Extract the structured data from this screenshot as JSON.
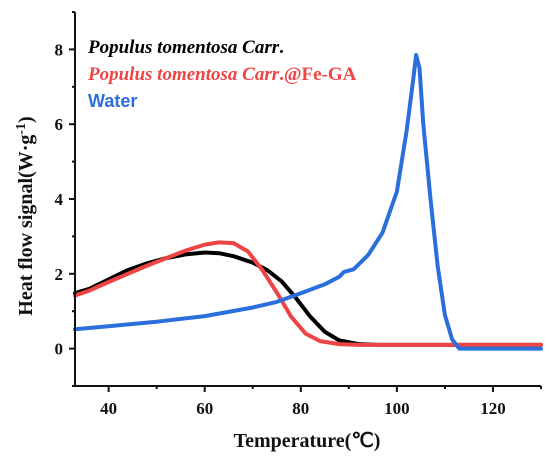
{
  "chart_data": {
    "type": "line",
    "title": "",
    "xlabel": "Temperature(℃)",
    "ylabel_main": "Heat flow signal(W·g",
    "ylabel_sup": "-1",
    "ylabel_close": ")",
    "xlim": [
      33,
      130
    ],
    "ylim": [
      -1,
      9
    ],
    "xticks": [
      40,
      60,
      80,
      100,
      120
    ],
    "yticks": [
      0,
      2,
      4,
      6,
      8
    ],
    "grid": false,
    "legend_placement": "top-left",
    "series": [
      {
        "name_italic": "Populus tomentosa Carr",
        "name_suffix": ".",
        "color": "#000000",
        "points": [
          [
            33,
            1.48
          ],
          [
            36,
            1.6
          ],
          [
            40,
            1.85
          ],
          [
            44,
            2.1
          ],
          [
            48,
            2.28
          ],
          [
            52,
            2.42
          ],
          [
            56,
            2.52
          ],
          [
            60,
            2.57
          ],
          [
            63,
            2.55
          ],
          [
            66,
            2.47
          ],
          [
            70,
            2.3
          ],
          [
            73,
            2.1
          ],
          [
            76,
            1.8
          ],
          [
            79,
            1.35
          ],
          [
            82,
            0.85
          ],
          [
            85,
            0.45
          ],
          [
            88,
            0.22
          ],
          [
            92,
            0.12
          ],
          [
            96,
            0.1
          ],
          [
            100,
            0.1
          ],
          [
            110,
            0.1
          ],
          [
            120,
            0.1
          ],
          [
            130,
            0.1
          ]
        ]
      },
      {
        "name_italic": "Populus tomentosa Carr",
        "name_suffix": ".@Fe-GA",
        "color": "#ef4444",
        "points": [
          [
            33,
            1.42
          ],
          [
            36,
            1.55
          ],
          [
            40,
            1.78
          ],
          [
            44,
            2.0
          ],
          [
            48,
            2.22
          ],
          [
            52,
            2.42
          ],
          [
            56,
            2.62
          ],
          [
            60,
            2.78
          ],
          [
            63,
            2.84
          ],
          [
            66,
            2.82
          ],
          [
            69,
            2.6
          ],
          [
            72,
            2.1
          ],
          [
            75,
            1.5
          ],
          [
            78,
            0.85
          ],
          [
            81,
            0.4
          ],
          [
            84,
            0.2
          ],
          [
            88,
            0.12
          ],
          [
            92,
            0.1
          ],
          [
            100,
            0.1
          ],
          [
            110,
            0.1
          ],
          [
            120,
            0.1
          ],
          [
            130,
            0.1
          ]
        ]
      },
      {
        "name_italic": "",
        "name_suffix": "Water",
        "color": "#2b6fdc",
        "points": [
          [
            33,
            0.52
          ],
          [
            40,
            0.6
          ],
          [
            50,
            0.72
          ],
          [
            60,
            0.87
          ],
          [
            70,
            1.1
          ],
          [
            75,
            1.25
          ],
          [
            80,
            1.48
          ],
          [
            85,
            1.72
          ],
          [
            88,
            1.92
          ],
          [
            89,
            2.05
          ],
          [
            91,
            2.12
          ],
          [
            94,
            2.5
          ],
          [
            97,
            3.1
          ],
          [
            100,
            4.2
          ],
          [
            102,
            5.8
          ],
          [
            103.5,
            7.3
          ],
          [
            104,
            7.85
          ],
          [
            104.7,
            7.5
          ],
          [
            105.5,
            6.0
          ],
          [
            107,
            4.0
          ],
          [
            108.5,
            2.2
          ],
          [
            110,
            0.9
          ],
          [
            111.5,
            0.25
          ],
          [
            113,
            0.0
          ],
          [
            115,
            0.0
          ],
          [
            120,
            0.0
          ],
          [
            130,
            0.0
          ]
        ]
      }
    ]
  }
}
